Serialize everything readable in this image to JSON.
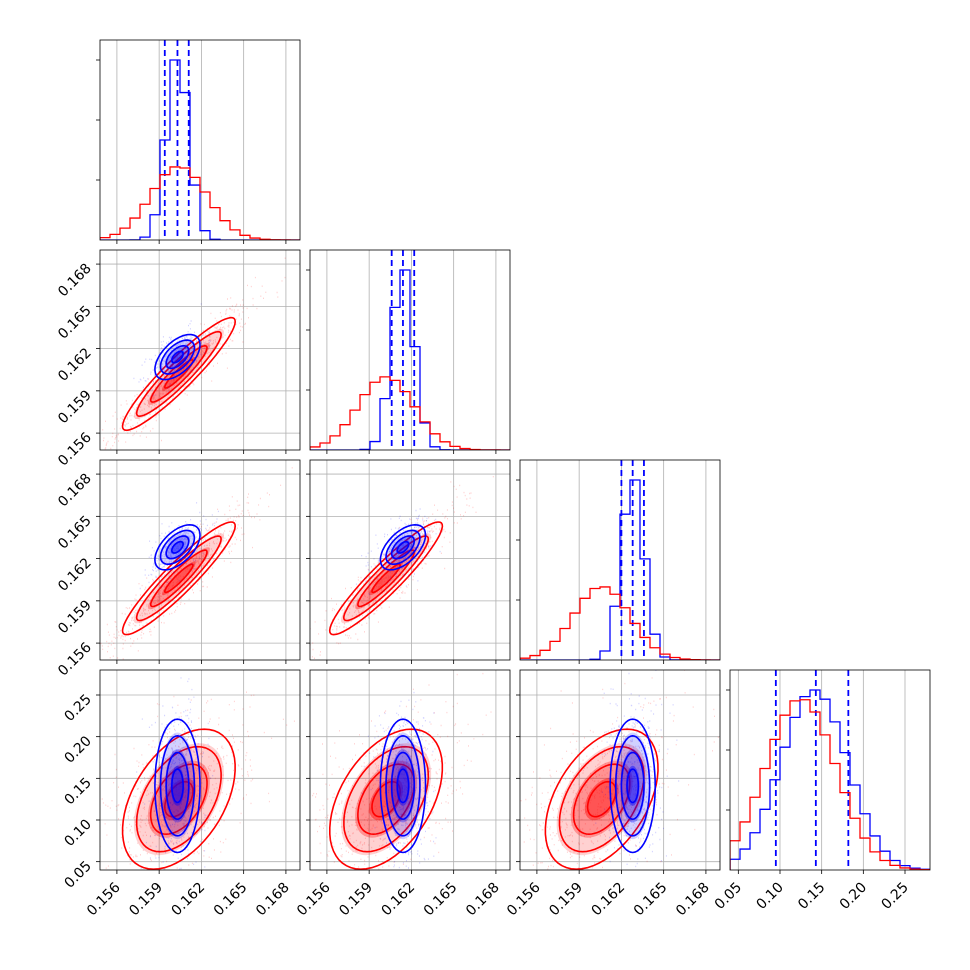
{
  "chart_data": {
    "type": "corner",
    "parameters": 4,
    "grid": true,
    "colors": {
      "blue": "#0000ff",
      "red": "#ff0000"
    },
    "axis_ranges": {
      "p1": [
        0.1548,
        0.169
      ],
      "p2": [
        0.1548,
        0.169
      ],
      "p3": [
        0.1548,
        0.169
      ],
      "p4": [
        0.04,
        0.28
      ]
    },
    "ticks": {
      "p1": [
        "0.156",
        "0.159",
        "0.162",
        "0.165",
        "0.168"
      ],
      "p2": [
        "0.156",
        "0.159",
        "0.162",
        "0.165",
        "0.168"
      ],
      "p3": [
        "0.156",
        "0.159",
        "0.162",
        "0.165",
        "0.168"
      ],
      "p4": [
        "0.05",
        "0.10",
        "0.15",
        "0.20",
        "0.25"
      ]
    },
    "series": [
      {
        "color": "blue",
        "means": [
          0.1603,
          0.1614,
          0.1628,
          0.141
        ],
        "sigmas": [
          0.0008,
          0.0008,
          0.0008,
          0.04
        ],
        "quantiles": [
          [
            0.1594,
            0.1603,
            0.1611
          ],
          [
            0.1606,
            0.1614,
            0.1622
          ],
          [
            0.162,
            0.1628,
            0.1636
          ],
          [
            0.095,
            0.143,
            0.182
          ]
        ]
      },
      {
        "color": "red",
        "means": [
          0.1604,
          0.1602,
          0.1606,
          0.125
        ],
        "sigmas": [
          0.002,
          0.002,
          0.002,
          0.042
        ]
      }
    ]
  }
}
